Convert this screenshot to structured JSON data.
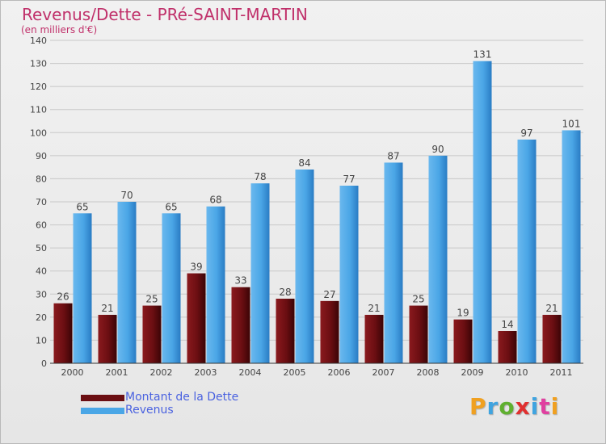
{
  "header": {
    "title": "Revenus/Dette - PRé-SAINT-MARTIN",
    "subtitle": "(en milliers d'€)"
  },
  "colors": {
    "title": "#c0306a",
    "dette": "#6b0e12",
    "revenus": "#4aa6e6",
    "legend_text": "#4a62e0",
    "axis_text": "#444444"
  },
  "legend": {
    "dette_label": "Montant de la Dette",
    "revenus_label": "Revenus"
  },
  "logo": {
    "letters": [
      "P",
      "r",
      "o",
      "x",
      "i",
      "t",
      "i"
    ],
    "colors": [
      "#f0a020",
      "#3fa4e0",
      "#60b030",
      "#e03030",
      "#3fa4e0",
      "#e040a0",
      "#f0a020"
    ]
  },
  "chart_data": {
    "type": "bar",
    "categories": [
      "2000",
      "2001",
      "2002",
      "2003",
      "2004",
      "2005",
      "2006",
      "2007",
      "2008",
      "2009",
      "2010",
      "2011"
    ],
    "series": [
      {
        "name": "Montant de la Dette",
        "values": [
          26,
          21,
          25,
          39,
          33,
          28,
          27,
          21,
          25,
          19,
          14,
          21
        ]
      },
      {
        "name": "Revenus",
        "values": [
          65,
          70,
          65,
          68,
          78,
          84,
          77,
          87,
          90,
          131,
          97,
          101
        ]
      }
    ],
    "ylim": [
      0,
      140
    ],
    "yticks": [
      0,
      10,
      20,
      30,
      40,
      50,
      60,
      70,
      80,
      90,
      100,
      110,
      120,
      130,
      140
    ],
    "grid": true,
    "legend_position": "bottom-left"
  }
}
